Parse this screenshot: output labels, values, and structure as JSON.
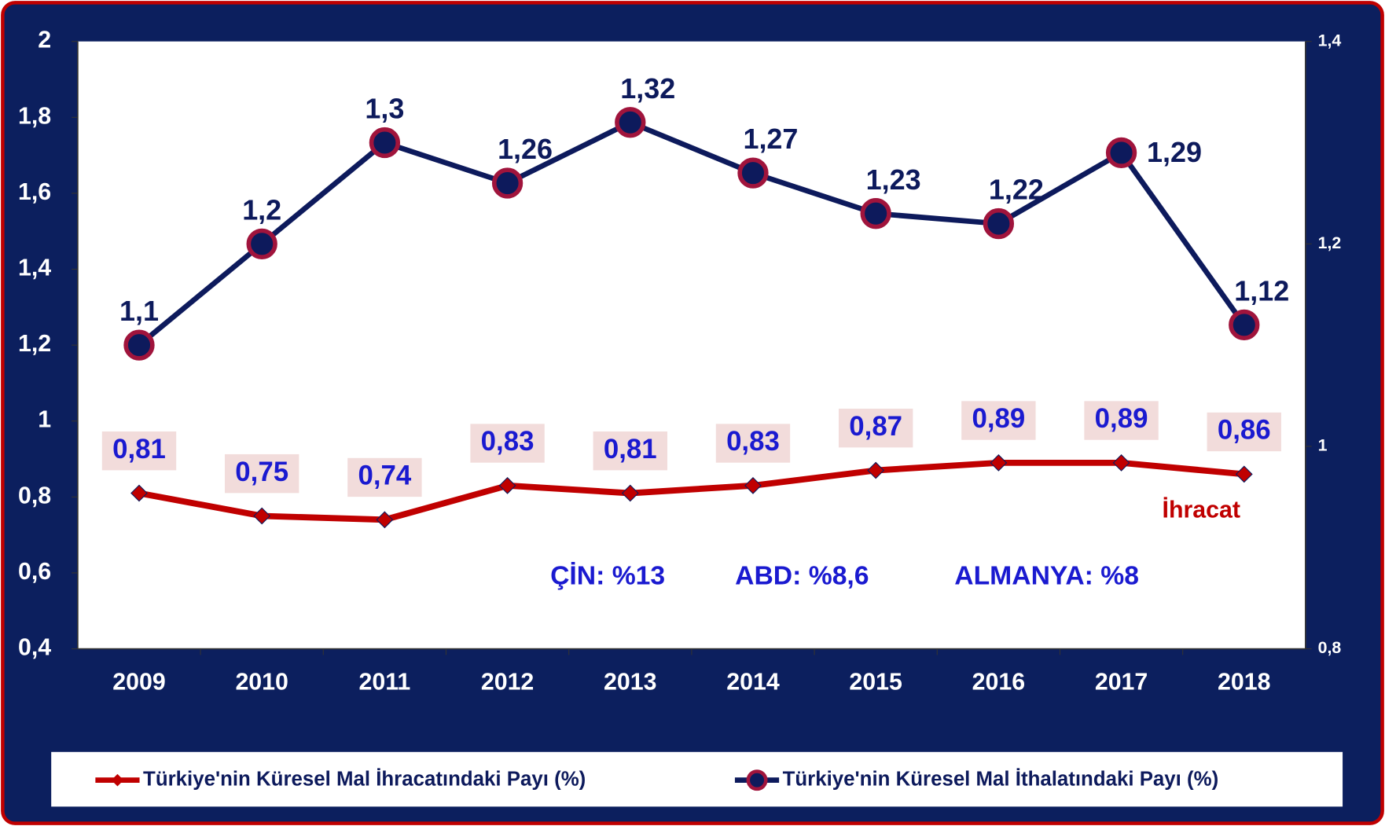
{
  "chart_data": {
    "type": "line",
    "categories": [
      "2009",
      "2010",
      "2011",
      "2012",
      "2013",
      "2014",
      "2015",
      "2016",
      "2017",
      "2018"
    ],
    "series": [
      {
        "name": "Türkiye'nin Küresel Mal İhracatındaki Payı (%)",
        "color": "#c00000",
        "axis": "y",
        "values": [
          0.81,
          0.75,
          0.74,
          0.83,
          0.81,
          0.83,
          0.87,
          0.89,
          0.89,
          0.86
        ],
        "value_labels": [
          "0,81",
          "0,75",
          "0,74",
          "0,83",
          "0,81",
          "0,83",
          "0,87",
          "0,89",
          "0,89",
          "0,86"
        ]
      },
      {
        "name": "Türkiye'nin Küresel Mal İthalatındaki Payı (%)",
        "color": "#0d1a5c",
        "axis": "y2",
        "values": [
          1.1,
          1.2,
          1.3,
          1.26,
          1.32,
          1.27,
          1.23,
          1.22,
          1.29,
          1.12
        ],
        "value_labels": [
          "1,1",
          "1,2",
          "1,3",
          "1,26",
          "1,32",
          "1,27",
          "1,23",
          "1,22",
          "1,29",
          "1,12"
        ]
      }
    ],
    "ylim": [
      0.4,
      2
    ],
    "yticks": [
      {
        "value": 0.4,
        "label": "0,4"
      },
      {
        "value": 0.6,
        "label": "0,6"
      },
      {
        "value": 0.8,
        "label": "0,8"
      },
      1,
      {
        "value": 1.2,
        "label": "1,2"
      },
      {
        "value": 1.4,
        "label": "1,4"
      },
      {
        "value": 1.6,
        "label": "1,6"
      },
      {
        "value": 1.8,
        "label": "1,8"
      },
      2
    ],
    "y2lim": [
      0.8,
      1.4
    ],
    "y2ticks": [
      {
        "value": 0.8,
        "label": "0,8"
      },
      1,
      {
        "value": 1.2,
        "label": "1,2"
      },
      {
        "value": 1.4,
        "label": "1,4"
      }
    ],
    "annotations": [
      "İhracat",
      "ÇİN: %13",
      "ABD: %8,6",
      "ALMANYA: %8"
    ],
    "legend": "bottom",
    "grid": false
  }
}
